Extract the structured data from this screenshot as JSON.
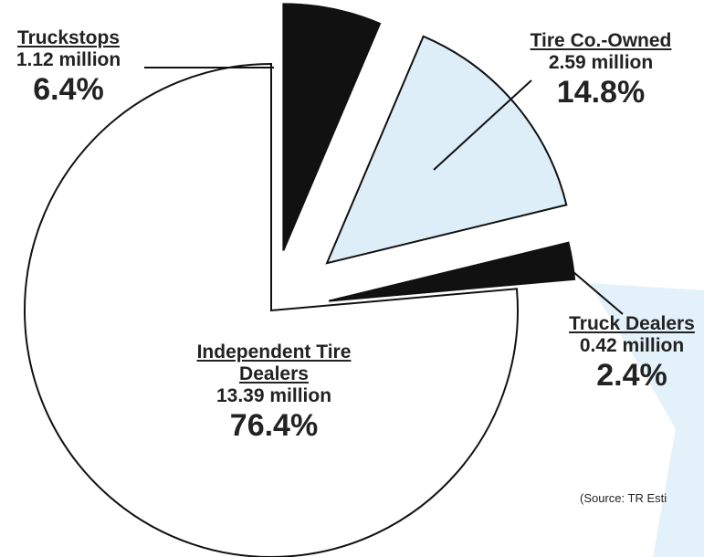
{
  "chart_data": {
    "type": "pie",
    "categories": [
      "Truckstops",
      "Tire Co.-Owned",
      "Truck Dealers",
      "Independent Tire Dealers"
    ],
    "values": [
      6.4,
      14.8,
      2.4,
      76.4
    ],
    "value_labels": [
      "6.4%",
      "14.8%",
      "2.4%",
      "76.4%"
    ],
    "amount_labels": [
      "1.12 million",
      "2.59 million",
      "0.42 million",
      "13.39 million"
    ],
    "colors": [
      "#111111",
      "#ddeef9",
      "#111111",
      "#ffffff"
    ],
    "source": "(Source: TR Esti"
  }
}
